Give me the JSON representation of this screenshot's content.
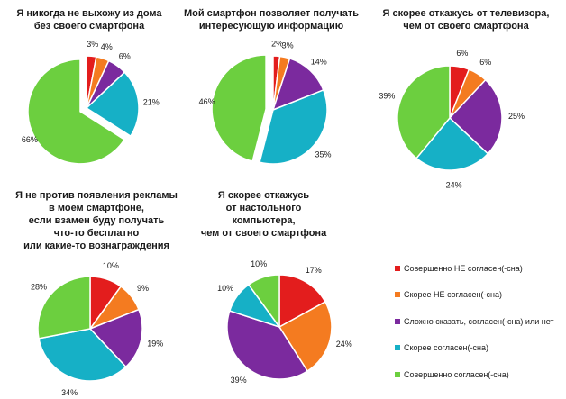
{
  "legend": [
    {
      "label": "Совершенно НЕ согласен(-сна)",
      "color": "#e31d1d"
    },
    {
      "label": "Скорее НЕ согласен(-сна)",
      "color": "#f47b20"
    },
    {
      "label": "Сложно сказать,  согласен(-сна) или нет",
      "color": "#7b2a9e"
    },
    {
      "label": "Скорее согласен(-сна)",
      "color": "#16b0c6"
    },
    {
      "label": "Совершенно согласен(-сна)",
      "color": "#6ccf3f"
    }
  ],
  "chart_data": [
    {
      "type": "pie",
      "title": "Я никогда не выхожу из дома\nбез своего смартфона",
      "categories": [
        "Совершенно НЕ согласен(-сна)",
        "Скорее НЕ согласен(-сна)",
        "Сложно сказать,  согласен(-сна) или нет",
        "Скорее согласен(-сна)",
        "Совершенно согласен(-сна)"
      ],
      "values": [
        3,
        4,
        6,
        21,
        66
      ],
      "labels": [
        "3%",
        "4%",
        "6%",
        "21%",
        "66%"
      ],
      "exploded": [
        false,
        false,
        false,
        false,
        true
      ]
    },
    {
      "type": "pie",
      "title": "Мой смартфон позволяет получать\nинтересующую информацию",
      "categories": [
        "Совершенно НЕ согласен(-сна)",
        "Скорее НЕ согласен(-сна)",
        "Сложно сказать,  согласен(-сна) или нет",
        "Скорее согласен(-сна)",
        "Совершенно согласен(-сна)"
      ],
      "values": [
        2,
        3,
        14,
        35,
        46
      ],
      "labels": [
        "2%",
        "3%",
        "14%",
        "35%",
        "46%"
      ],
      "exploded": [
        false,
        false,
        false,
        false,
        true
      ]
    },
    {
      "type": "pie",
      "title": "Я скорее откажусь от телевизора,\nчем от своего смартфона",
      "categories": [
        "Совершенно НЕ согласен(-сна)",
        "Скорее НЕ согласен(-сна)",
        "Сложно сказать,  согласен(-сна) или нет",
        "Скорее согласен(-сна)",
        "Совершенно согласен(-сна)"
      ],
      "values": [
        6,
        6,
        25,
        24,
        39
      ],
      "labels": [
        "6%",
        "6%",
        "25%",
        "24%",
        "39%"
      ],
      "exploded": [
        false,
        false,
        false,
        false,
        false
      ]
    },
    {
      "type": "pie",
      "title": "Я не против появления рекламы\nв моем смартфоне,\nесли взамен буду получать\nчто-то бесплатно\nили какие-то вознаграждения",
      "categories": [
        "Совершенно НЕ согласен(-сна)",
        "Скорее НЕ согласен(-сна)",
        "Сложно сказать,  согласен(-сна) или нет",
        "Скорее согласен(-сна)",
        "Совершенно согласен(-сна)"
      ],
      "values": [
        10,
        9,
        19,
        34,
        28
      ],
      "labels": [
        "10%",
        "9%",
        "19%",
        "34%",
        "28%"
      ],
      "exploded": [
        false,
        false,
        false,
        false,
        false
      ]
    },
    {
      "type": "pie",
      "title": "Я скорее откажусь\nот настольного\nкомпьютера,\nчем от своего смартфона",
      "categories": [
        "Совершенно НЕ согласен(-сна)",
        "Скорее НЕ согласен(-сна)",
        "Сложно сказать,  согласен(-сна) или нет",
        "Скорее согласен(-сна)",
        "Совершенно согласен(-сна)"
      ],
      "values": [
        17,
        24,
        39,
        10,
        10
      ],
      "labels": [
        "17%",
        "24%",
        "39%",
        "10%",
        "10%"
      ],
      "exploded": [
        false,
        false,
        false,
        false,
        false
      ]
    }
  ]
}
